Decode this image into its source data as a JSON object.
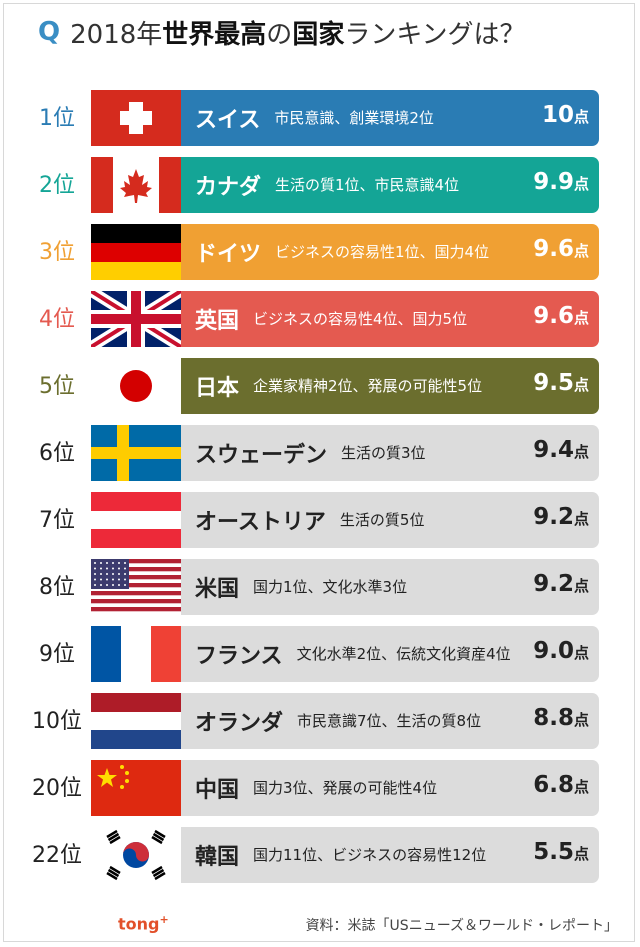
{
  "title": {
    "q": "Q",
    "part1": "2018年",
    "part2": "世界最高",
    "part3": "の",
    "part4": "国家",
    "part5": "ランキングは？"
  },
  "chart_data": {
    "type": "bar",
    "unit": "点",
    "categories": [
      "スイス",
      "カナダ",
      "ドイツ",
      "英国",
      "日本",
      "スウェーデン",
      "オーストリア",
      "米国",
      "フランス",
      "オランダ",
      "中国",
      "韓国"
    ],
    "ranks": [
      "1位",
      "2位",
      "3位",
      "4位",
      "5位",
      "6位",
      "7位",
      "8位",
      "9位",
      "10位",
      "20位",
      "22位"
    ],
    "details": [
      "市民意識、創業環境2位",
      "生活の質1位、市民意識4位",
      "ビジネスの容易性1位、国力4位",
      "ビジネスの容易性4位、国力5位",
      "企業家精神2位、発展の可能性5位",
      "生活の質3位",
      "生活の質5位",
      "国力1位、文化水準3位",
      "文化水準2位、伝統文化資産4位",
      "市民意識7位、生活の質8位",
      "国力3位、発展の可能性4位",
      "国力11位、ビジネスの容易性12位"
    ],
    "values": [
      10,
      9.9,
      9.6,
      9.6,
      9.5,
      9.4,
      9.2,
      9.2,
      9.0,
      8.8,
      6.8,
      5.5
    ],
    "value_labels": [
      "10",
      "9.9",
      "9.6",
      "9.6",
      "9.5",
      "9.4",
      "9.2",
      "9.2",
      "9.0",
      "8.8",
      "6.8",
      "5.5"
    ],
    "bar_colors": [
      "#2a7cb4",
      "#14a596",
      "#f0a033",
      "#e45a50",
      "#6b6e2e",
      "#dcdcdc",
      "#dcdcdc",
      "#dcdcdc",
      "#dcdcdc",
      "#dcdcdc",
      "#dcdcdc",
      "#dcdcdc"
    ],
    "rank_colors": [
      "#2a7cb4",
      "#14a596",
      "#f0a033",
      "#e45a50",
      "#6b6e2e",
      "#222222",
      "#222222",
      "#222222",
      "#222222",
      "#222222",
      "#222222",
      "#222222"
    ],
    "flag_icons": [
      "switzerland-flag-icon",
      "canada-flag-icon",
      "germany-flag-icon",
      "uk-flag-icon",
      "japan-flag-icon",
      "sweden-flag-icon",
      "austria-flag-icon",
      "usa-flag-icon",
      "france-flag-icon",
      "netherlands-flag-icon",
      "china-flag-icon",
      "korea-flag-icon"
    ]
  },
  "footer": {
    "logo": "tong",
    "logo_plus": "+",
    "source": "資料：米誌「USニューズ＆ワールド・レポート」"
  }
}
